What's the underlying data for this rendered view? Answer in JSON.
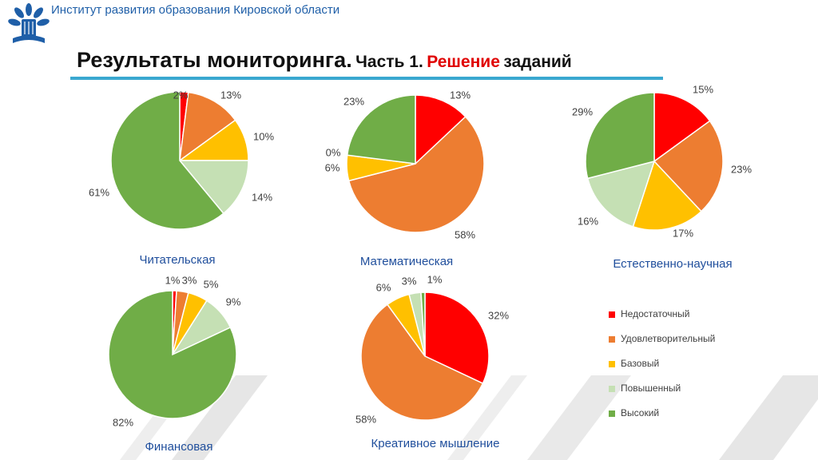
{
  "header": {
    "org_name": "Институт развития образования Кировской области",
    "logo_colors": {
      "petals": "#1f5fa8",
      "book": "#1f5fa8"
    }
  },
  "title": {
    "main": "Результаты мониторинга.",
    "part": "Часть 1.",
    "accent": "Решение",
    "tail": "заданий",
    "accent_color": "#e00000",
    "rule_color": "#3aa8d0"
  },
  "legend": {
    "placement": "bottom-right",
    "items": [
      {
        "label": "Недостаточный",
        "color": "#ff0000"
      },
      {
        "label": "Удовлетворительный",
        "color": "#ed7d31"
      },
      {
        "label": "Базовый",
        "color": "#ffc000"
      },
      {
        "label": "Повышенный",
        "color": "#c5e0b4"
      },
      {
        "label": "Высокий",
        "color": "#70ad47"
      }
    ]
  },
  "chart_data": [
    {
      "type": "pie",
      "title": "Читательская",
      "categories": [
        "Недостаточный",
        "Удовлетворительный",
        "Базовый",
        "Повышенный",
        "Высокий"
      ],
      "values": [
        2,
        13,
        10,
        14,
        61
      ],
      "labels": [
        "2%",
        "13%",
        "10%",
        "14%",
        "61%"
      ]
    },
    {
      "type": "pie",
      "title": "Математическая",
      "categories": [
        "Недостаточный",
        "Удовлетворительный",
        "Базовый",
        "Повышенный",
        "Высокий"
      ],
      "values": [
        13,
        58,
        6,
        0,
        23
      ],
      "labels": [
        "13%",
        "58%",
        "6%",
        "0%",
        "23%"
      ]
    },
    {
      "type": "pie",
      "title": "Естественно-научная",
      "categories": [
        "Недостаточный",
        "Удовлетворительный",
        "Базовый",
        "Повышенный",
        "Высокий"
      ],
      "values": [
        15,
        23,
        17,
        16,
        29
      ],
      "labels": [
        "15%",
        "23%",
        "17%",
        "16%",
        "29%"
      ]
    },
    {
      "type": "pie",
      "title": "Финансовая",
      "categories": [
        "Недостаточный",
        "Удовлетворительный",
        "Базовый",
        "Повышенный",
        "Высокий"
      ],
      "values": [
        1,
        3,
        5,
        9,
        82
      ],
      "labels": [
        "1%",
        "3%",
        "5%",
        "9%",
        "82%"
      ]
    },
    {
      "type": "pie",
      "title": "Креативное мышление",
      "categories": [
        "Недостаточный",
        "Удовлетворительный",
        "Базовый",
        "Повышенный",
        "Высокий"
      ],
      "values": [
        32,
        58,
        6,
        3,
        1
      ],
      "labels": [
        "32%",
        "58%",
        "6%",
        "3%",
        "1%"
      ]
    }
  ]
}
